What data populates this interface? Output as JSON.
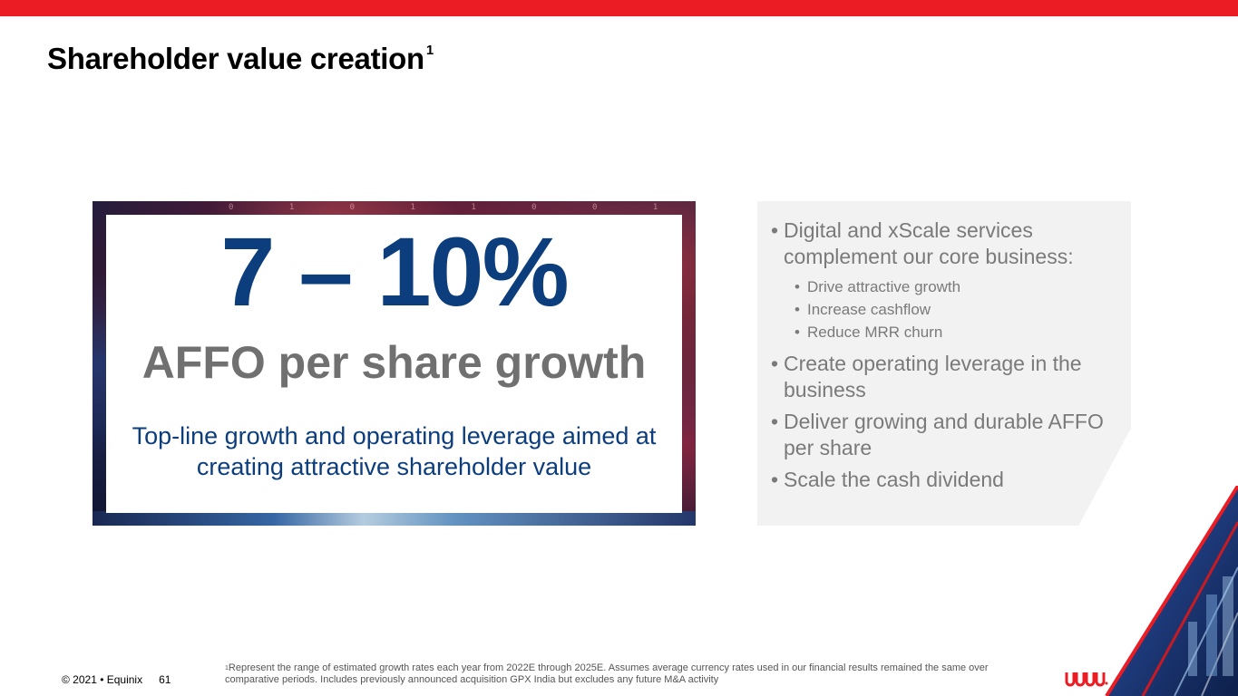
{
  "header": {
    "title": "Shareholder value creation",
    "title_footnote_mark": "1"
  },
  "hero": {
    "range": "7 – 10%",
    "metric": "AFFO per share growth",
    "description": "Top-line growth and operating leverage aimed at creating attractive shareholder value"
  },
  "bullets": {
    "item1": "Digital and xScale services complement our core business:",
    "subitems": [
      "Drive attractive growth",
      "Increase cashflow",
      "Reduce MRR churn"
    ],
    "item2": "Create operating leverage in the business",
    "item3": "Deliver growing and durable AFFO per share",
    "item4": "Scale the cash dividend"
  },
  "footer": {
    "copyright": "© 2021 • Equinix",
    "page_number": "61",
    "footnote_mark": "1",
    "footnote": "Represent the range of estimated growth rates each year from 2022E through 2025E. Assumes average currency rates used in our financial results remained the same over comparative periods. Includes previously announced acquisition GPX India but excludes any future M&A activity"
  },
  "colors": {
    "brand_red": "#ec1c24",
    "headline_blue": "#0c3d7d",
    "metric_gray": "#707070",
    "bullet_gray": "#7a7a7a",
    "panel_bg": "#f2f2f2"
  },
  "icons": {
    "logo": "equinix-logo",
    "corner": "datacenter-corner-graphic"
  }
}
